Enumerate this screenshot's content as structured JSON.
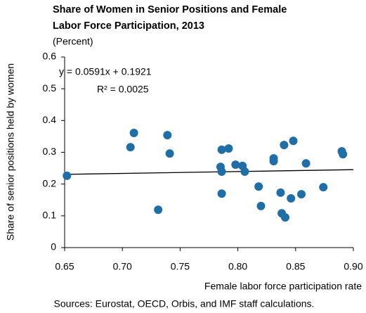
{
  "chart_data": {
    "type": "scatter",
    "title": [
      "Share of Women in Senior Positions and Female",
      "Labor Force Participation, 2013"
    ],
    "subtitle": "(Percent)",
    "x_label": "Female labor force participation rate",
    "y_label": "Share of senior positions held by women",
    "source": "Sources: Eurostat, OECD, Orbis, and IMF staff calculations.",
    "annotations": [
      "y = 0.0591x + 0.1921",
      "R² = 0.0025"
    ],
    "color": "#1f6ea6",
    "trendline": {
      "slope": 0.0591,
      "intercept": 0.1921,
      "color": "#000000"
    },
    "x": [
      0.652,
      0.71,
      0.707,
      0.731,
      0.739,
      0.741,
      0.786,
      0.792,
      0.785,
      0.786,
      0.786,
      0.798,
      0.804,
      0.806,
      0.818,
      0.82,
      0.831,
      0.831,
      0.84,
      0.848,
      0.837,
      0.838,
      0.841,
      0.846,
      0.855,
      0.859,
      0.874,
      0.89,
      0.891
    ],
    "values": [
      0.226,
      0.361,
      0.316,
      0.119,
      0.354,
      0.296,
      0.308,
      0.312,
      0.254,
      0.239,
      0.17,
      0.261,
      0.257,
      0.239,
      0.192,
      0.131,
      0.281,
      0.272,
      0.323,
      0.336,
      0.173,
      0.108,
      0.095,
      0.155,
      0.168,
      0.265,
      0.19,
      0.303,
      0.294
    ],
    "xlim": [
      0.65,
      0.9
    ],
    "ylim": [
      0,
      0.6
    ],
    "xticks": [
      0.65,
      {
        "value": 0.7,
        "label": "0.70"
      },
      0.75,
      {
        "value": 0.8,
        "label": "0.80"
      },
      0.85,
      {
        "value": 0.9,
        "label": "0.90"
      }
    ],
    "yticks": [
      0,
      0.1,
      0.2,
      0.3,
      0.4,
      0.5,
      0.6
    ],
    "grid": false
  }
}
